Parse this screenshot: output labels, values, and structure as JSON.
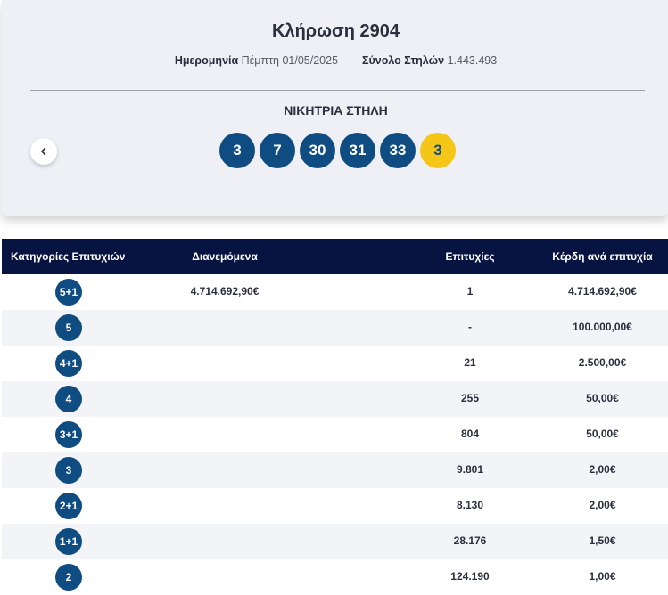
{
  "header": {
    "title": "Κλήρωση 2904",
    "date_label": "Ημερομηνία",
    "date_value": "Πέμπτη 01/05/2025",
    "columns_label": "Σύνολο Στηλών",
    "columns_value": "1.443.493",
    "winning_label": "ΝΙΚΗΤΡΙΑ ΣΤΗΛΗ",
    "prev_icon": "chevron-left-icon"
  },
  "numbers": [
    "3",
    "7",
    "30",
    "31",
    "33"
  ],
  "joker": "3",
  "colors": {
    "ball": "#0f4c81",
    "joker": "#f5c518",
    "table_header": "#071340"
  },
  "table": {
    "headers": [
      "Κατηγορίες Επιτυχιών",
      "Διανεμόμενα",
      "Επιτυχίες",
      "Κέρδη ανά επιτυχία"
    ],
    "rows": [
      {
        "category": "5+1",
        "distributed": "4.714.692,90€",
        "winners": "1",
        "prize": "4.714.692,90€"
      },
      {
        "category": "5",
        "distributed": "",
        "winners": "-",
        "prize": "100.000,00€"
      },
      {
        "category": "4+1",
        "distributed": "",
        "winners": "21",
        "prize": "2.500,00€"
      },
      {
        "category": "4",
        "distributed": "",
        "winners": "255",
        "prize": "50,00€"
      },
      {
        "category": "3+1",
        "distributed": "",
        "winners": "804",
        "prize": "50,00€"
      },
      {
        "category": "3",
        "distributed": "",
        "winners": "9.801",
        "prize": "2,00€"
      },
      {
        "category": "2+1",
        "distributed": "",
        "winners": "8.130",
        "prize": "2,00€"
      },
      {
        "category": "1+1",
        "distributed": "",
        "winners": "28.176",
        "prize": "1,50€"
      },
      {
        "category": "2",
        "distributed": "",
        "winners": "124.190",
        "prize": "1,00€"
      }
    ]
  }
}
